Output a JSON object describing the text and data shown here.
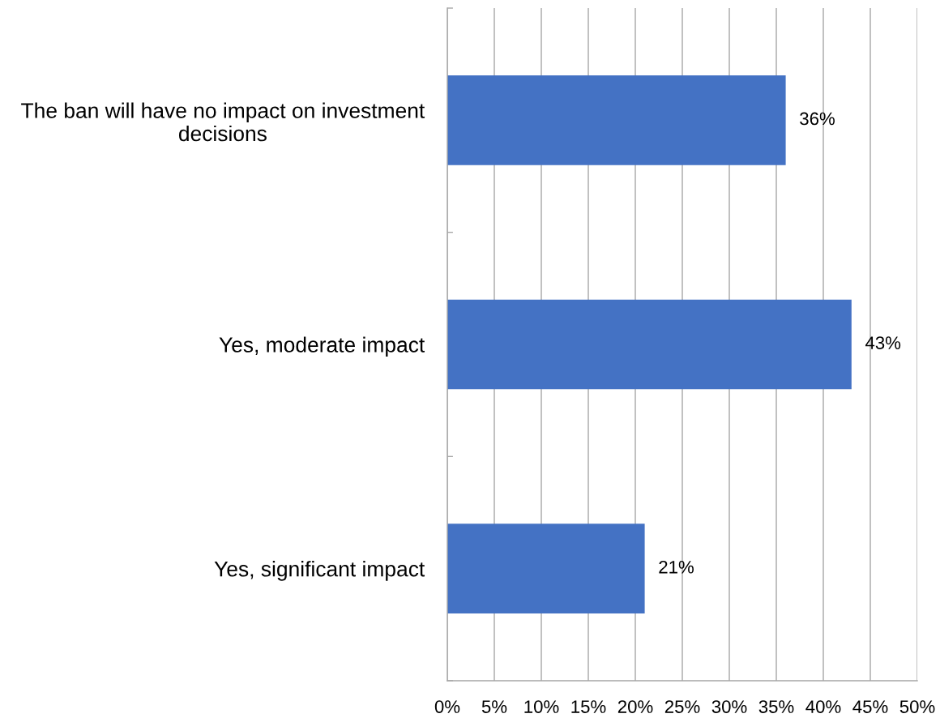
{
  "chart_data": {
    "type": "bar",
    "orientation": "horizontal",
    "categories": [
      "The ban will have no impact on investment decisions",
      "Yes, moderate impact",
      "Yes, significant impact"
    ],
    "values": [
      36,
      43,
      21
    ],
    "value_labels": [
      "36%",
      "43%",
      "21%"
    ],
    "color": "#4472c4",
    "xlim": [
      0,
      50
    ],
    "xticks": [
      {
        "value": 0,
        "label": "0%"
      },
      {
        "value": 5,
        "label": "5%"
      },
      {
        "value": 10,
        "label": "10%"
      },
      {
        "value": 15,
        "label": "15%"
      },
      {
        "value": 20,
        "label": "20%"
      },
      {
        "value": 25,
        "label": "25%"
      },
      {
        "value": 30,
        "label": "30%"
      },
      {
        "value": 35,
        "label": "35%"
      },
      {
        "value": 40,
        "label": "40%"
      },
      {
        "value": 45,
        "label": "45%"
      },
      {
        "value": 50,
        "label": "50%"
      }
    ],
    "grid": "x"
  }
}
